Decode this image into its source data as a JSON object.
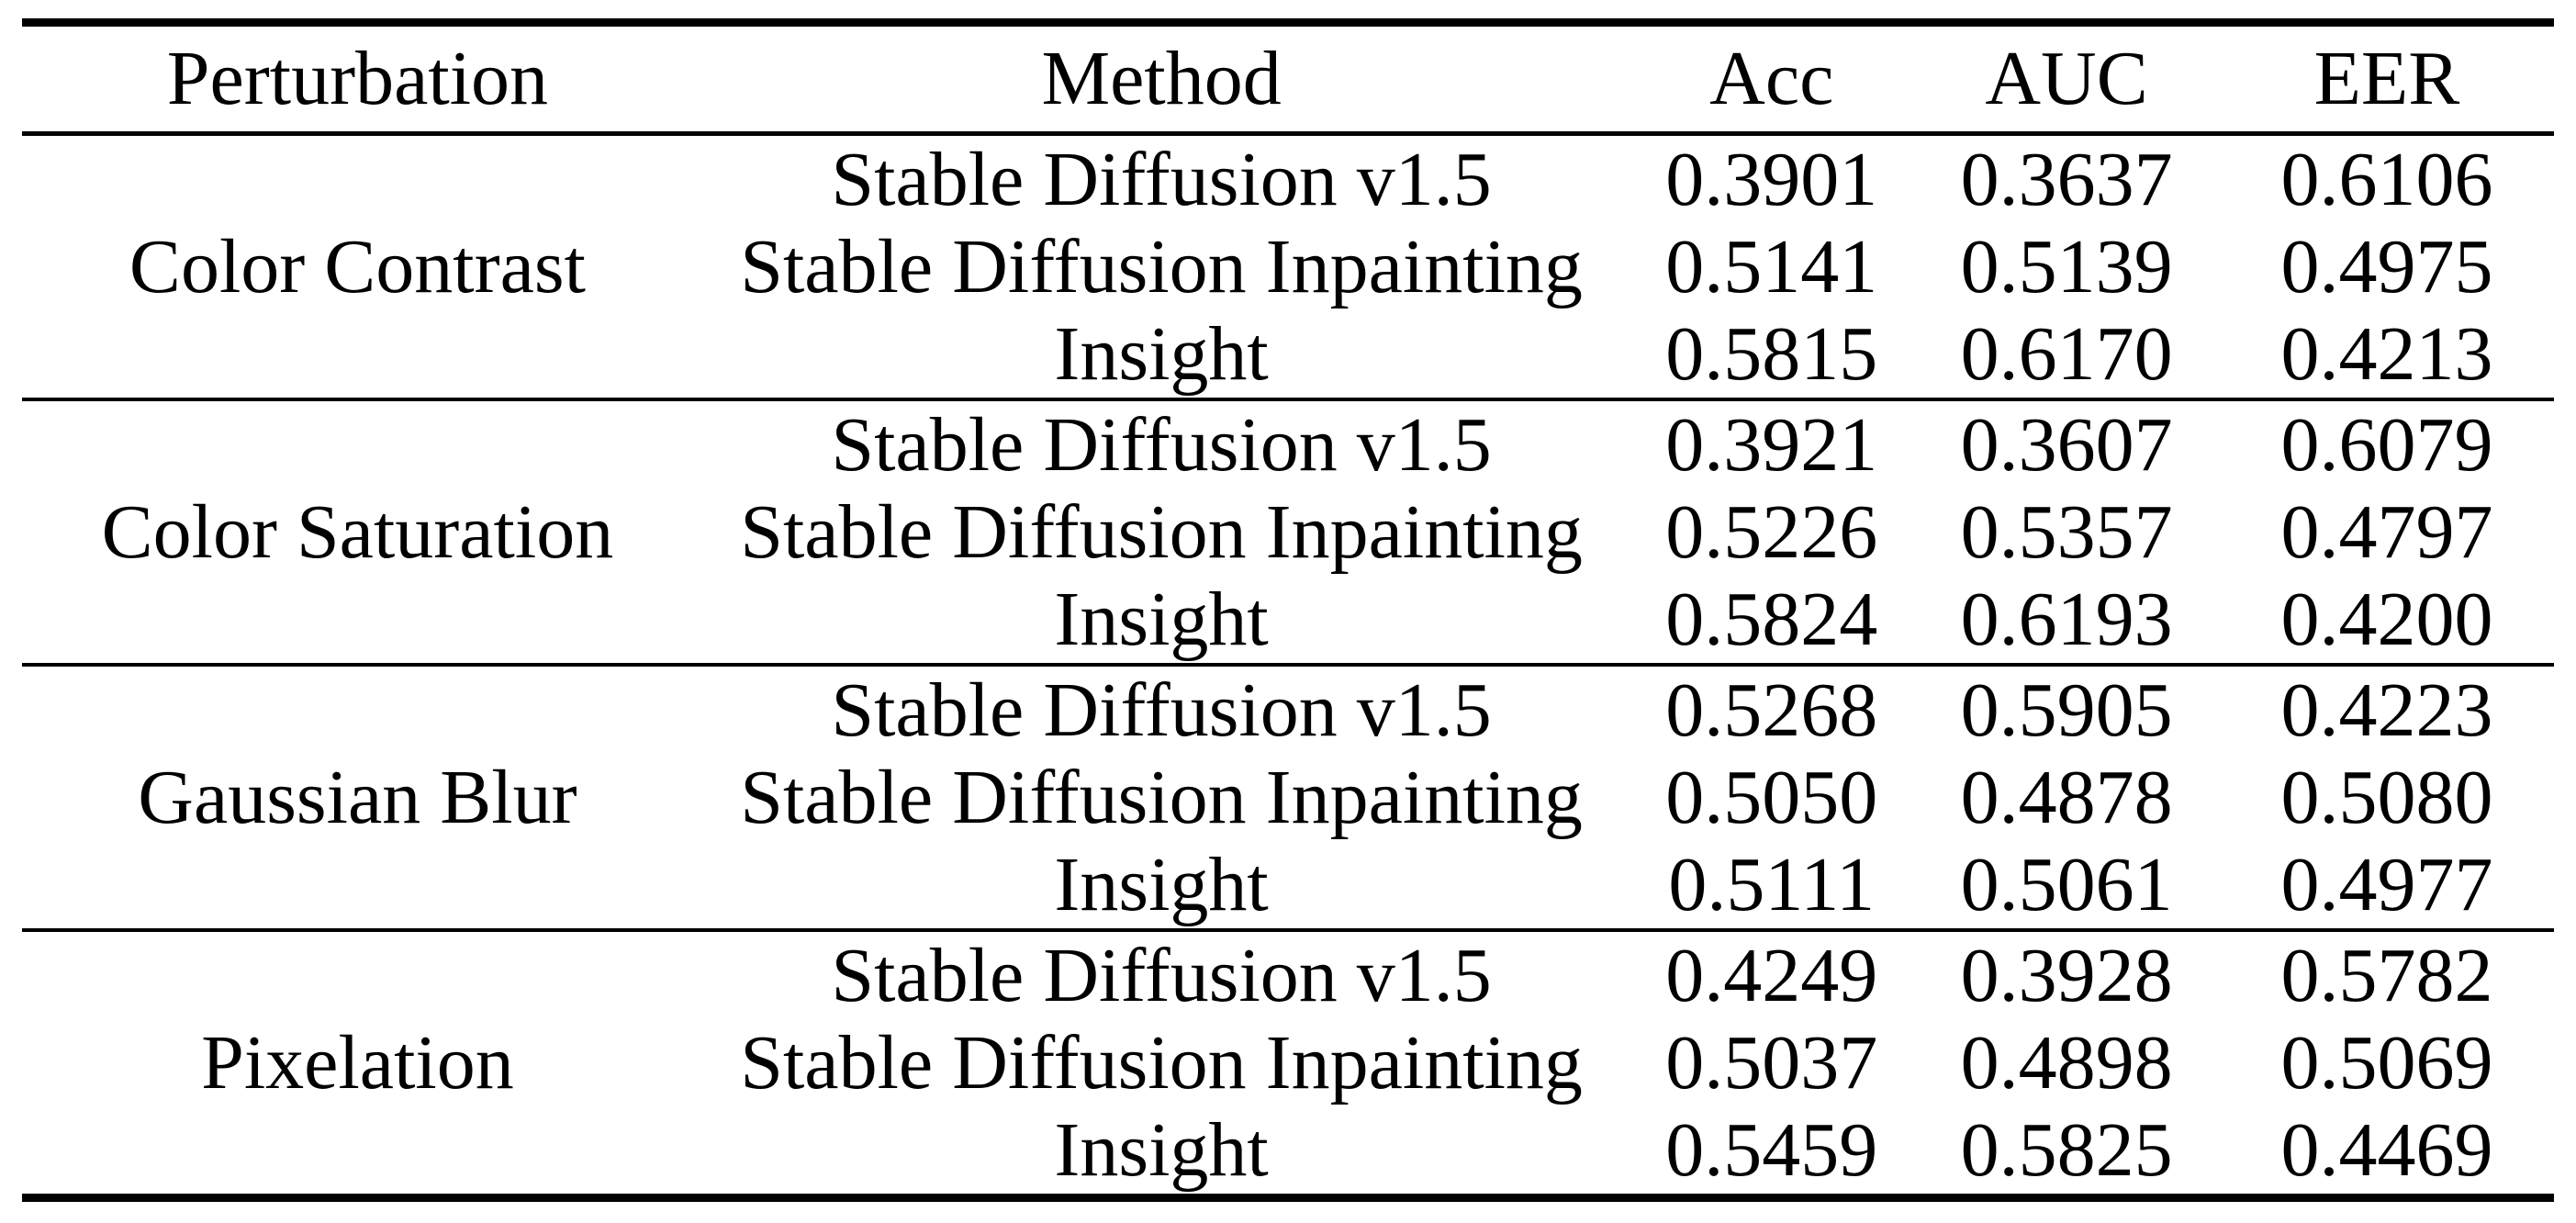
{
  "page": {
    "background_color": "#ffffff",
    "text_color": "#000000"
  },
  "table": {
    "columns": [
      "Perturbation",
      "Method",
      "Acc",
      "AUC",
      "EER"
    ],
    "groups": [
      {
        "perturbation": "Color Contrast",
        "rows": [
          {
            "method": "Stable Diffusion v1.5",
            "acc": "0.3901",
            "auc": "0.3637",
            "eer": "0.6106"
          },
          {
            "method": "Stable Diffusion Inpainting",
            "acc": "0.5141",
            "auc": "0.5139",
            "eer": "0.4975"
          },
          {
            "method": "Insight",
            "acc": "0.5815",
            "auc": "0.6170",
            "eer": "0.4213"
          }
        ]
      },
      {
        "perturbation": "Color Saturation",
        "rows": [
          {
            "method": "Stable Diffusion v1.5",
            "acc": "0.3921",
            "auc": "0.3607",
            "eer": "0.6079"
          },
          {
            "method": "Stable Diffusion Inpainting",
            "acc": "0.5226",
            "auc": "0.5357",
            "eer": "0.4797"
          },
          {
            "method": "Insight",
            "acc": "0.5824",
            "auc": "0.6193",
            "eer": "0.4200"
          }
        ]
      },
      {
        "perturbation": "Gaussian Blur",
        "rows": [
          {
            "method": "Stable Diffusion v1.5",
            "acc": "0.5268",
            "auc": "0.5905",
            "eer": "0.4223"
          },
          {
            "method": "Stable Diffusion Inpainting",
            "acc": "0.5050",
            "auc": "0.4878",
            "eer": "0.5080"
          },
          {
            "method": "Insight",
            "acc": "0.5111",
            "auc": "0.5061",
            "eer": "0.4977"
          }
        ]
      },
      {
        "perturbation": "Pixelation",
        "rows": [
          {
            "method": "Stable Diffusion v1.5",
            "acc": "0.4249",
            "auc": "0.3928",
            "eer": "0.5782"
          },
          {
            "method": "Stable Diffusion Inpainting",
            "acc": "0.5037",
            "auc": "0.4898",
            "eer": "0.5069"
          },
          {
            "method": "Insight",
            "acc": "0.5459",
            "auc": "0.5825",
            "eer": "0.4469"
          }
        ]
      }
    ]
  }
}
